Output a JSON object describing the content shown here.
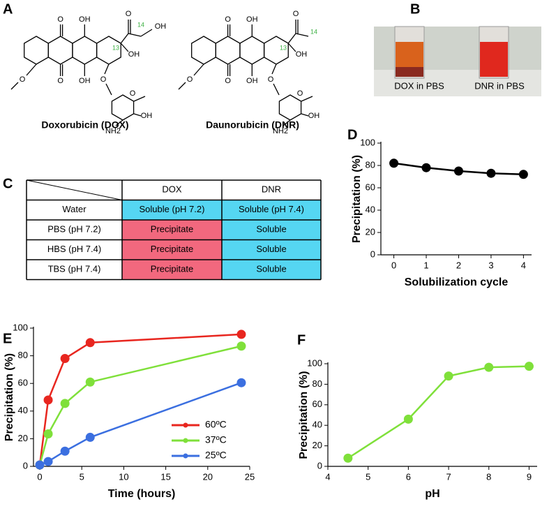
{
  "structures": {
    "panel_label": "A",
    "molecules": [
      {
        "name": "Doxorubicin (DOX)",
        "atoms": [
          "O",
          "OH",
          "O",
          "OH",
          "O",
          "O",
          "13",
          "14",
          "OH",
          "OH",
          "O",
          "O",
          "OH",
          "NH2"
        ]
      },
      {
        "name": "Daunorubicin (DNR)",
        "atoms": [
          "O",
          "OH",
          "O",
          "OH",
          "O",
          "O",
          "13",
          "14",
          "OH",
          "O",
          "O",
          "OH",
          "NH2"
        ]
      }
    ]
  },
  "photo": {
    "panel_label": "B",
    "captions": [
      "DOX in PBS",
      "DNR in PBS"
    ]
  },
  "table": {
    "panel_label": "C",
    "columns": [
      "DOX",
      "DNR"
    ],
    "rows": [
      {
        "header": "Water",
        "cells": [
          "Soluble (pH 7.2)",
          "Soluble (pH 7.4)"
        ]
      },
      {
        "header": "PBS (pH 7.2)",
        "cells": [
          "Precipitate",
          "Soluble"
        ]
      },
      {
        "header": "HBS (pH 7.4)",
        "cells": [
          "Precipitate",
          "Soluble"
        ]
      },
      {
        "header": "TBS (pH 7.4)",
        "cells": [
          "Precipitate",
          "Soluble"
        ]
      }
    ],
    "cell_colors": [
      [
        "#55d6f2",
        "#55d6f2"
      ],
      [
        "#f2687e",
        "#55d6f2"
      ],
      [
        "#f2687e",
        "#55d6f2"
      ],
      [
        "#f2687e",
        "#55d6f2"
      ]
    ]
  },
  "chart_data": [
    {
      "type": "line",
      "panel_label": "D",
      "x": [
        0,
        1,
        2,
        3,
        4
      ],
      "values": [
        82,
        78,
        75,
        73,
        72
      ],
      "color": "#000000",
      "xlim": [
        -0.4,
        4.25
      ],
      "ylim": [
        0,
        100
      ],
      "xticks": [
        0,
        1,
        2,
        3,
        4
      ],
      "yticks": [
        0,
        20,
        40,
        60,
        80,
        100
      ],
      "xlabel": "Solubilization cycle",
      "ylabel": "Precipitation (%)"
    },
    {
      "type": "line",
      "panel_label": "E",
      "x": [
        0,
        1,
        3,
        6,
        24
      ],
      "series": [
        {
          "name": "60ºC",
          "color": "#e8261f",
          "values": [
            1,
            48,
            78,
            89.5,
            95.5
          ]
        },
        {
          "name": "37ºC",
          "color": "#7fe03a",
          "values": [
            1,
            23.5,
            45.5,
            61,
            87
          ]
        },
        {
          "name": "25ºC",
          "color": "#3b6fe0",
          "values": [
            1,
            3.5,
            11,
            21,
            60.5
          ]
        }
      ],
      "xlim": [
        -0.75,
        25
      ],
      "ylim": [
        0,
        100
      ],
      "xticks": [
        0,
        5,
        10,
        15,
        20,
        25
      ],
      "yticks": [
        0,
        20,
        40,
        60,
        80,
        100
      ],
      "xlabel": "Time (hours)",
      "ylabel": "Precipitation (%)",
      "legend": "center-right"
    },
    {
      "type": "line",
      "panel_label": "F",
      "x": [
        4.5,
        6,
        7,
        8,
        9
      ],
      "values": [
        8,
        46,
        88,
        96.5,
        97.5
      ],
      "color": "#7fe03a",
      "xlim": [
        4,
        9.2
      ],
      "ylim": [
        0,
        100
      ],
      "xticks": [
        4,
        5,
        6,
        7,
        8,
        9
      ],
      "yticks": [
        0,
        20,
        40,
        60,
        80,
        100
      ],
      "xlabel": "pH",
      "ylabel": "Precipitation (%)"
    }
  ]
}
